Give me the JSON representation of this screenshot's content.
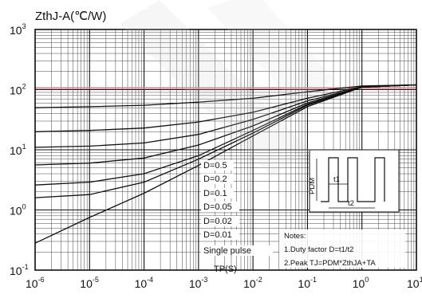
{
  "chart_data": {
    "type": "line",
    "title": "ZthJ-A(℃/W)",
    "xlabel": "TP(S)",
    "ylabel": "ZthJ-A(℃/W)",
    "x_scale": "log",
    "y_scale": "log",
    "xlim": [
      1e-06,
      10
    ],
    "ylim": [
      0.1,
      1000
    ],
    "grid": true,
    "x_ticks": [
      {
        "base": "10",
        "exp": "-6",
        "value": 1e-06
      },
      {
        "base": "10",
        "exp": "-5",
        "value": 1e-05
      },
      {
        "base": "10",
        "exp": "-4",
        "value": 0.0001
      },
      {
        "base": "10",
        "exp": "-3",
        "value": 0.001
      },
      {
        "base": "10",
        "exp": "-2",
        "value": 0.01
      },
      {
        "base": "10",
        "exp": "-1",
        "value": 0.1
      },
      {
        "base": "10",
        "exp": "0",
        "value": 1
      },
      {
        "base": "10",
        "exp": "1",
        "value": 10
      }
    ],
    "y_ticks": [
      {
        "base": "10",
        "exp": "-1",
        "value": 0.1
      },
      {
        "base": "10",
        "exp": "0",
        "value": 1
      },
      {
        "base": "10",
        "exp": "1",
        "value": 10
      },
      {
        "base": "10",
        "exp": "2",
        "value": 100
      },
      {
        "base": "10",
        "exp": "3",
        "value": 1000
      }
    ],
    "reference_line": {
      "y": 100,
      "color": "#d4848c"
    },
    "series": [
      {
        "name": "D=0.5",
        "x": [
          1e-06,
          1e-05,
          0.0001,
          0.001,
          0.01,
          0.1,
          1,
          10
        ],
        "y": [
          50,
          52,
          55,
          62,
          72,
          92,
          115,
          120
        ]
      },
      {
        "name": "D=0.2",
        "x": [
          1e-06,
          1e-05,
          0.0001,
          0.001,
          0.01,
          0.1,
          1,
          10
        ],
        "y": [
          20,
          21,
          23,
          29,
          42,
          72,
          112,
          120
        ]
      },
      {
        "name": "D=0.1",
        "x": [
          1e-06,
          1e-05,
          0.0001,
          0.001,
          0.01,
          0.1,
          1,
          10
        ],
        "y": [
          11,
          11.5,
          13,
          18,
          32,
          65,
          110,
          120
        ]
      },
      {
        "name": "D=0.05",
        "x": [
          1e-06,
          1e-05,
          0.0001,
          0.001,
          0.01,
          0.1,
          1,
          10
        ],
        "y": [
          5.6,
          6,
          7.3,
          12,
          25,
          60,
          110,
          120
        ]
      },
      {
        "name": "D=0.02",
        "x": [
          1e-06,
          1e-05,
          0.0001,
          0.001,
          0.01,
          0.1,
          1,
          10
        ],
        "y": [
          2.6,
          2.9,
          4,
          8,
          21,
          57,
          110,
          120
        ]
      },
      {
        "name": "D=0.01",
        "x": [
          1e-06,
          1e-05,
          0.0001,
          0.001,
          0.01,
          0.1,
          1,
          10
        ],
        "y": [
          1.6,
          1.8,
          2.9,
          7,
          19,
          55,
          110,
          120
        ]
      },
      {
        "name": "Single pulse",
        "x": [
          1e-06,
          1e-05,
          0.0001,
          0.001,
          0.01,
          0.1,
          1,
          10
        ],
        "y": [
          0.28,
          0.75,
          1.9,
          5.5,
          17,
          52,
          110,
          120
        ]
      }
    ],
    "legend_position": "center-right",
    "notes": {
      "heading": "Notes:",
      "line1": "1.Duty factor D=t1/t2",
      "line2": "2.Peak TJ=PDM*ZthJA+TA"
    },
    "inset": {
      "pdm_label": "PDM",
      "t1_label": "t1",
      "t2_label": "t2"
    }
  }
}
